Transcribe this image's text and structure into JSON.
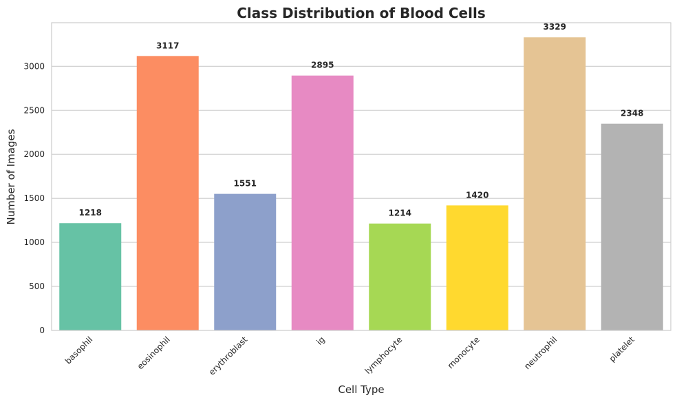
{
  "chart_data": {
    "type": "bar",
    "title": "Class Distribution of Blood Cells",
    "xlabel": "Cell Type",
    "ylabel": "Number of Images",
    "categories": [
      "basophil",
      "eosinophil",
      "erythroblast",
      "ig",
      "lymphocyte",
      "monocyte",
      "neutrophil",
      "platelet"
    ],
    "values": [
      1218,
      3117,
      1551,
      2895,
      1214,
      1420,
      3329,
      2348
    ],
    "data_labels": [
      "1218",
      "3117",
      "1551",
      "2895",
      "1214",
      "1420",
      "3329",
      "2348"
    ],
    "colors": [
      "#66c2a5",
      "#fc8d62",
      "#8da0cb",
      "#e78ac3",
      "#a6d854",
      "#ffd92f",
      "#e5c494",
      "#b3b3b3"
    ],
    "ylim": [
      0,
      3495
    ],
    "yticks": [
      0,
      500,
      1000,
      1500,
      2000,
      2500,
      3000
    ],
    "ytick_labels": [
      "0",
      "500",
      "1000",
      "1500",
      "2000",
      "2500",
      "3000"
    ],
    "grid": "horizontal",
    "xtick_rotation": 45
  }
}
